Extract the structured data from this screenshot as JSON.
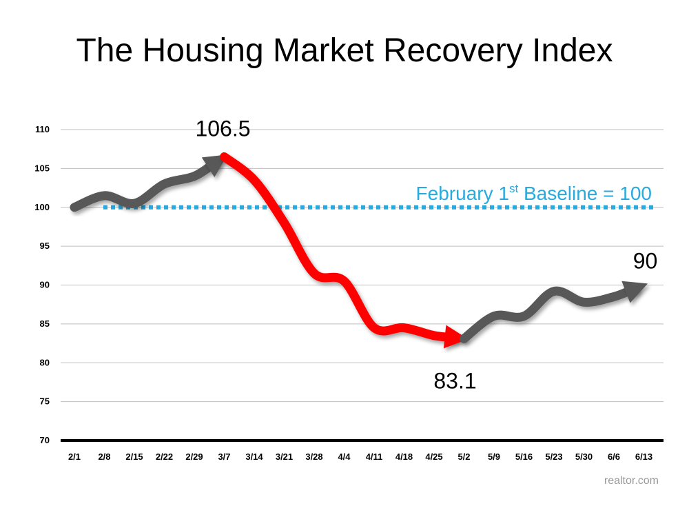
{
  "title": "The Housing Market Recovery Index",
  "source": "realtor.com",
  "colors": {
    "up_line": "#595959",
    "down_line": "#ff0000",
    "baseline": "#29a9dc",
    "grid": "#bfbfbf",
    "axis": "#000000"
  },
  "chart_data": {
    "type": "line",
    "title": "The Housing Market Recovery Index",
    "xlabel": "",
    "ylabel": "",
    "ylim": [
      70,
      110
    ],
    "yticks": [
      110,
      105,
      100,
      95,
      90,
      85,
      80,
      75,
      70
    ],
    "grid": true,
    "categories": [
      "2/1",
      "2/8",
      "2/15",
      "2/22",
      "2/29",
      "3/7",
      "3/14",
      "3/21",
      "3/28",
      "4/4",
      "4/11",
      "4/18",
      "4/25",
      "5/2",
      "5/9",
      "5/16",
      "5/23",
      "5/30",
      "6/6",
      "6/13"
    ],
    "series": [
      {
        "values": [
          100,
          101.5,
          100.5,
          103,
          104,
          106.5,
          103.5,
          98,
          91.5,
          90.5,
          84.5,
          84.5,
          83.5,
          83.1,
          86,
          86,
          89.2,
          87.8,
          88.5,
          90
        ],
        "segments": [
          {
            "from": 0,
            "to": 5,
            "color": "#595959"
          },
          {
            "from": 5,
            "to": 13,
            "color": "#ff0000"
          },
          {
            "from": 13,
            "to": 19,
            "color": "#595959"
          }
        ]
      }
    ],
    "baseline": {
      "value": 100,
      "label_main": "February 1",
      "label_sup": "st",
      "label_rest": " Baseline = 100"
    },
    "annotations": [
      {
        "text": "106.5",
        "index": 5
      },
      {
        "text": "83.1",
        "index": 13
      },
      {
        "text": "90",
        "index": 19
      }
    ]
  }
}
